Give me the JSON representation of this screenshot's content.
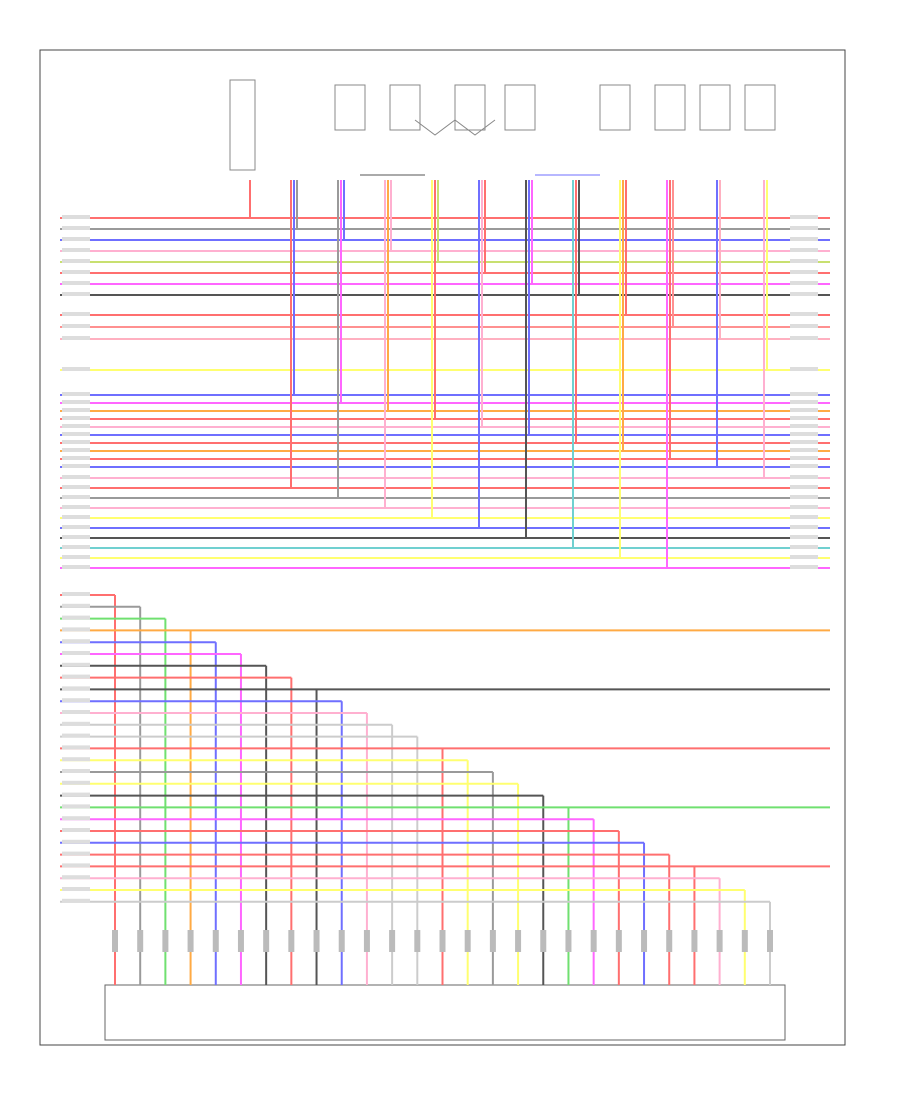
{
  "wires": [
    {
      "color": "#ff6f6f"
    },
    {
      "color": "#9a9a9a"
    },
    {
      "color": "#6f6fff"
    },
    {
      "color": "#ffb0d0"
    },
    {
      "color": "#c8e070"
    },
    {
      "color": "#ff6f6f"
    },
    {
      "color": "#ff66ff"
    },
    {
      "color": "#555555"
    },
    {
      "color": "#ff6f6f"
    },
    {
      "color": "#ff9090"
    },
    {
      "color": "#ffb0c0"
    },
    {
      "color": "#ffff70"
    },
    {
      "color": "#6f6fff"
    },
    {
      "color": "#ff66ff"
    },
    {
      "color": "#ffaa44"
    },
    {
      "color": "#ff6f6f"
    },
    {
      "color": "#ffb0d0"
    },
    {
      "color": "#6f6fff"
    },
    {
      "color": "#ff6f6f"
    },
    {
      "color": "#ffaa44"
    },
    {
      "color": "#ff6f6f"
    },
    {
      "color": "#6f6fff"
    },
    {
      "color": "#ffb0d0"
    },
    {
      "color": "#ff6f6f"
    },
    {
      "color": "#9a9a9a"
    },
    {
      "color": "#ffb0d0"
    },
    {
      "color": "#ffff70"
    },
    {
      "color": "#6f6fff"
    },
    {
      "color": "#555555"
    },
    {
      "color": "#70d0d0"
    },
    {
      "color": "#ffff70"
    },
    {
      "color": "#ff66ff"
    },
    {
      "color": "#ff6f6f"
    },
    {
      "color": "#9a9a9a"
    },
    {
      "color": "#70e070"
    },
    {
      "color": "#ffaa44"
    },
    {
      "color": "#6f6fff"
    },
    {
      "color": "#ff66ff"
    },
    {
      "color": "#555555"
    },
    {
      "color": "#ff6f6f"
    },
    {
      "color": "#555555"
    },
    {
      "color": "#6f6fff"
    },
    {
      "color": "#ffb0d0"
    },
    {
      "color": "#cccccc"
    },
    {
      "color": "#cccccc"
    },
    {
      "color": "#ff6f6f"
    },
    {
      "color": "#ffff70"
    },
    {
      "color": "#9a9a9a"
    },
    {
      "color": "#ffff70"
    },
    {
      "color": "#555555"
    },
    {
      "color": "#70e070"
    },
    {
      "color": "#ff66ff"
    },
    {
      "color": "#ff6f6f"
    },
    {
      "color": "#6f6fff"
    },
    {
      "color": "#ff6f6f"
    },
    {
      "color": "#ff6f6f"
    },
    {
      "color": "#ffb0d0"
    },
    {
      "color": "#ffff70"
    },
    {
      "color": "#cccccc"
    }
  ]
}
